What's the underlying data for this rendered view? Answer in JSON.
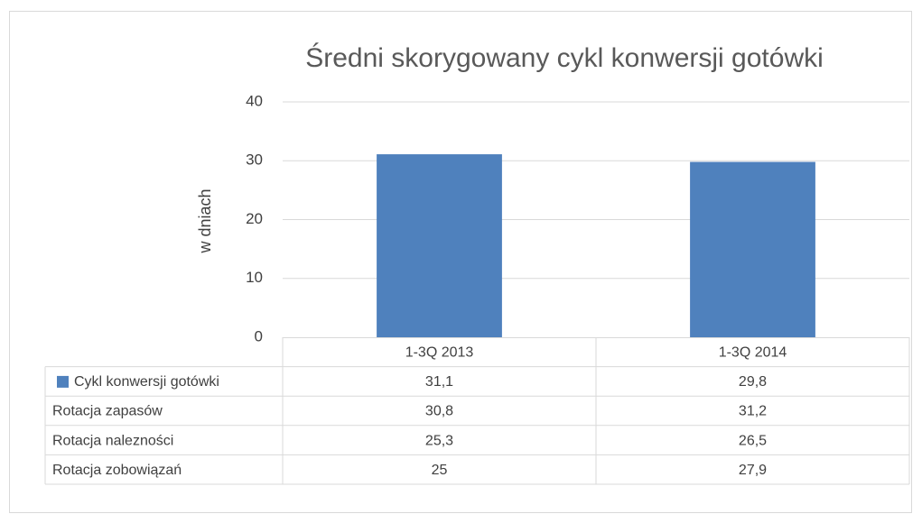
{
  "chart_data": {
    "type": "bar",
    "title": "Średni skorygowany cykl konwersji gotówki",
    "y_label": "w dniach",
    "categories": [
      "1-3Q 2013",
      "1-3Q 2014"
    ],
    "series": [
      {
        "name": "Cykl konwersji gotówki",
        "color": "#4f81bd",
        "values": [
          31.1,
          29.8
        ],
        "value_labels": [
          "31,1",
          "29,8"
        ]
      }
    ],
    "data_table": [
      {
        "name": "Rotacja zapasów",
        "values": [
          30.8,
          31.2
        ],
        "value_labels": [
          "30,8",
          "31,2"
        ]
      },
      {
        "name": "Rotacja nalezności",
        "values": [
          25.3,
          26.5
        ],
        "value_labels": [
          "25,3",
          "26,5"
        ]
      },
      {
        "name": "Rotacja zobowiązań",
        "values": [
          25,
          27.9
        ],
        "value_labels": [
          "25",
          "27,9"
        ]
      }
    ],
    "ylim": [
      0,
      40
    ],
    "yticks": [
      0,
      10,
      20,
      30,
      40
    ],
    "grid": true
  }
}
